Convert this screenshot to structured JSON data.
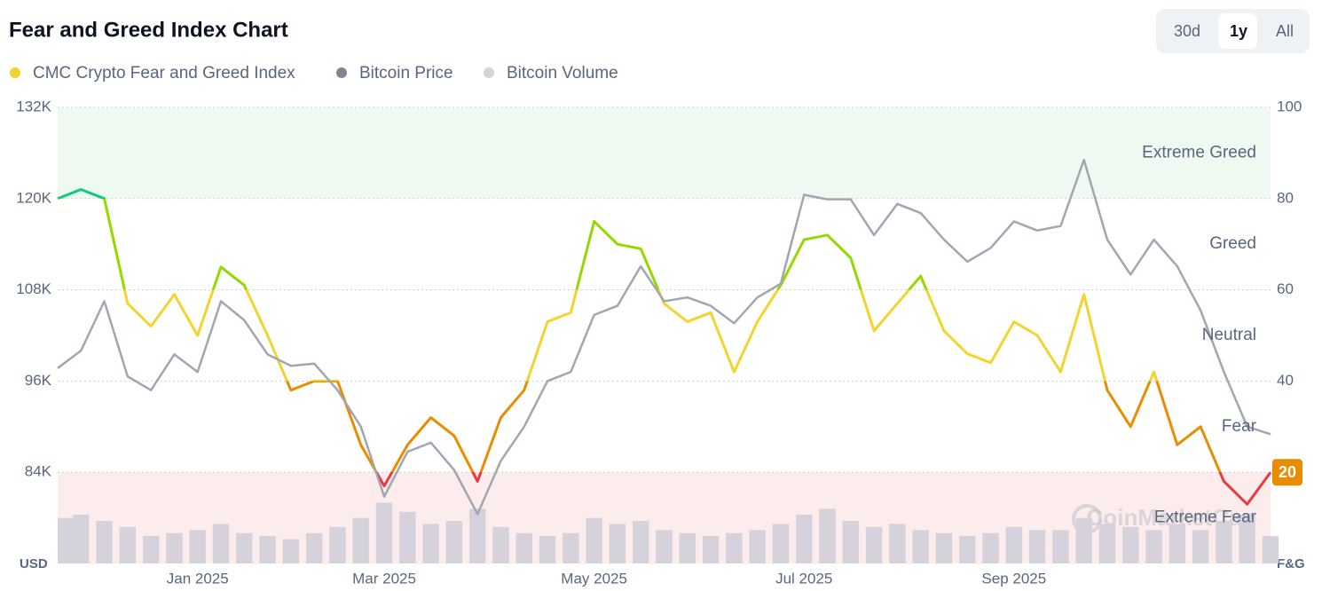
{
  "chart_data": {
    "type": "line",
    "title": "Fear and Greed Index Chart",
    "ranges": [
      "30d",
      "1y",
      "All"
    ],
    "active_range": "1y",
    "watermark": "CoinMarketCap",
    "ylabel": "USD",
    "y2label": "F&G",
    "grid": true,
    "categories": [
      null,
      null,
      null,
      null,
      null,
      null,
      "Jan 2025",
      null,
      null,
      null,
      null,
      null,
      null,
      null,
      "Mar 2025",
      null,
      null,
      null,
      null,
      null,
      null,
      null,
      null,
      "May 2025",
      null,
      null,
      null,
      null,
      null,
      null,
      null,
      null,
      "Jul 2025",
      null,
      null,
      null,
      null,
      null,
      null,
      null,
      null,
      "Sep 2025",
      null,
      null,
      null,
      null,
      null,
      null,
      null,
      null,
      null,
      null,
      null
    ],
    "series": [
      {
        "name": "CMC Crypto Fear and Greed Index",
        "color": "#f3d42f",
        "axis": "y2",
        "values": [
          80,
          82,
          80,
          57,
          52,
          59,
          50,
          65,
          61,
          50,
          38,
          40,
          40,
          26,
          17,
          26,
          32,
          28,
          18,
          32,
          38,
          53,
          55,
          75,
          70,
          69,
          57,
          53,
          55,
          42,
          53,
          61,
          71,
          72,
          67,
          51,
          57,
          63,
          51,
          46,
          44,
          53,
          50,
          42,
          59,
          38,
          30,
          42,
          26,
          30,
          18,
          13,
          20
        ]
      },
      {
        "name": "Bitcoin Price",
        "color": "#a0a6b2",
        "values": [
          97700,
          100000,
          106500,
          96600,
          94800,
          99500,
          97200,
          106500,
          104000,
          99500,
          98000,
          98300,
          94800,
          90000,
          80800,
          86700,
          87900,
          84300,
          78500,
          85500,
          90000,
          96000,
          97200,
          104700,
          105900,
          111100,
          106500,
          107000,
          105900,
          103600,
          107000,
          108800,
          120500,
          119900,
          119900,
          115200,
          119300,
          118100,
          114600,
          111700,
          113500,
          117000,
          115800,
          116400,
          125100,
          114600,
          110000,
          114600,
          111100,
          105300,
          97200,
          90000,
          89000
        ]
      },
      {
        "name": "Bitcoin Volume",
        "color": "#d6d2dc",
        "type": "bar",
        "axis": "y3",
        "values": [
          30,
          32,
          28,
          24,
          18,
          20,
          22,
          26,
          20,
          18,
          16,
          20,
          24,
          30,
          40,
          34,
          26,
          28,
          36,
          24,
          20,
          18,
          20,
          30,
          26,
          28,
          22,
          20,
          18,
          20,
          22,
          26,
          32,
          36,
          28,
          24,
          26,
          22,
          20,
          18,
          20,
          24,
          22,
          22,
          30,
          26,
          24,
          22,
          26,
          22,
          28,
          32,
          18
        ]
      }
    ],
    "ylim": [
      72000,
      132000
    ],
    "yticks": [
      {
        "value": 84000,
        "label": "84K"
      },
      {
        "value": 96000,
        "label": "96K"
      },
      {
        "value": 108000,
        "label": "108K"
      },
      {
        "value": 120000,
        "label": "120K"
      },
      {
        "value": 132000,
        "label": "132K"
      }
    ],
    "y2lim": [
      0,
      100
    ],
    "y2ticks": [
      20,
      40,
      60,
      80,
      100
    ],
    "y3lim": [
      0,
      300
    ],
    "zones": [
      {
        "name": "Extreme Greed",
        "range": [
          80,
          100
        ],
        "color": "#16c784",
        "band": "#eef9f2"
      },
      {
        "name": "Greed",
        "range": [
          60,
          80
        ],
        "color": "#93d900"
      },
      {
        "name": "Neutral",
        "range": [
          40,
          60
        ],
        "color": "#f3d42f"
      },
      {
        "name": "Fear",
        "range": [
          20,
          40
        ],
        "color": "#ea8c00"
      },
      {
        "name": "Extreme Fear",
        "range": [
          0,
          20
        ],
        "color": "#ea3943",
        "band": "#fcecec"
      }
    ]
  }
}
